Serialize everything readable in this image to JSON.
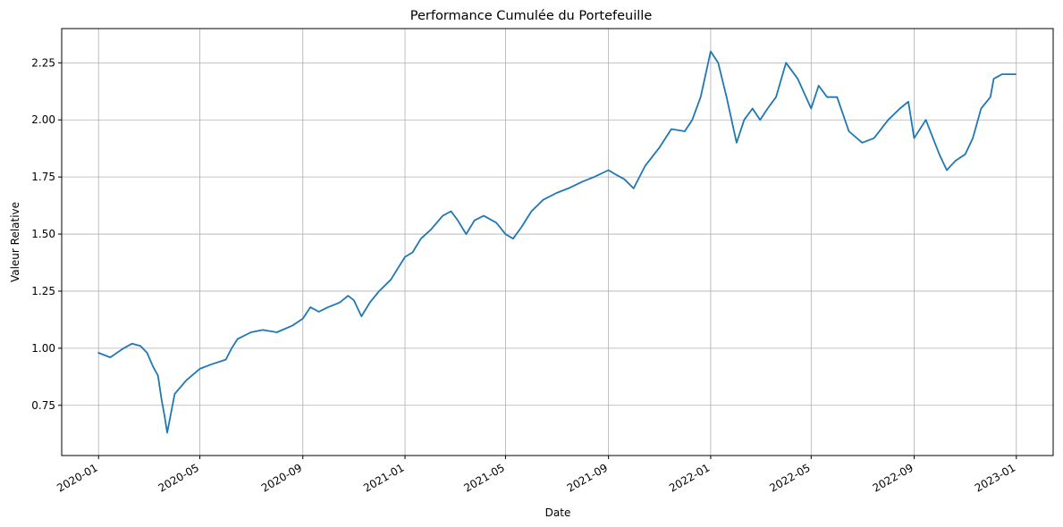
{
  "chart_data": {
    "type": "line",
    "title": "Performance Cumulée du Portefeuille",
    "xlabel": "Date",
    "ylabel": "Valeur Relative",
    "xlim": [
      "2019-11-18",
      "2023-02-14"
    ],
    "ylim": [
      0.53,
      2.4
    ],
    "grid": true,
    "line_color": "#1f77b4",
    "grid_color": "#b0b0b0",
    "x_ticks": [
      "2020-01",
      "2020-05",
      "2020-09",
      "2021-01",
      "2021-05",
      "2021-09",
      "2022-01",
      "2022-05",
      "2022-09",
      "2023-01"
    ],
    "y_ticks": [
      "0.75",
      "1.00",
      "1.25",
      "1.50",
      "1.75",
      "2.00",
      "2.25"
    ],
    "series": [
      {
        "x": [
          "2020-01-01",
          "2020-01-15",
          "2020-01-31",
          "2020-02-10",
          "2020-02-20",
          "2020-02-28",
          "2020-03-06",
          "2020-03-12",
          "2020-03-16",
          "2020-03-20",
          "2020-03-23",
          "2020-04-01",
          "2020-04-15",
          "2020-05-01",
          "2020-05-15",
          "2020-06-01",
          "2020-06-08",
          "2020-06-15",
          "2020-07-01",
          "2020-07-15",
          "2020-08-01",
          "2020-08-20",
          "2020-09-01",
          "2020-09-10",
          "2020-09-20",
          "2020-10-01",
          "2020-10-15",
          "2020-10-25",
          "2020-11-01",
          "2020-11-10",
          "2020-11-20",
          "2020-12-01",
          "2020-12-15",
          "2021-01-01",
          "2021-01-10",
          "2021-01-20",
          "2021-02-01",
          "2021-02-15",
          "2021-02-25",
          "2021-03-05",
          "2021-03-15",
          "2021-03-25",
          "2021-04-05",
          "2021-04-20",
          "2021-05-01",
          "2021-05-10",
          "2021-05-20",
          "2021-06-01",
          "2021-06-15",
          "2021-07-01",
          "2021-07-15",
          "2021-08-01",
          "2021-08-15",
          "2021-09-01",
          "2021-09-10",
          "2021-09-20",
          "2021-10-01",
          "2021-10-15",
          "2021-11-01",
          "2021-11-15",
          "2021-12-01",
          "2021-12-10",
          "2021-12-20",
          "2022-01-01",
          "2022-01-10",
          "2022-01-20",
          "2022-02-01",
          "2022-02-10",
          "2022-02-20",
          "2022-03-01",
          "2022-03-10",
          "2022-03-20",
          "2022-04-01",
          "2022-04-15",
          "2022-05-01",
          "2022-05-10",
          "2022-05-20",
          "2022-06-01",
          "2022-06-15",
          "2022-07-01",
          "2022-07-15",
          "2022-08-01",
          "2022-08-15",
          "2022-08-25",
          "2022-09-01",
          "2022-09-15",
          "2022-10-01",
          "2022-10-10",
          "2022-10-20",
          "2022-11-01",
          "2022-11-10",
          "2022-11-20",
          "2022-12-01",
          "2022-12-05",
          "2022-12-15",
          "2022-12-31"
        ],
        "y": [
          0.98,
          0.96,
          1.0,
          1.02,
          1.01,
          0.98,
          0.92,
          0.88,
          0.78,
          0.7,
          0.63,
          0.8,
          0.86,
          0.91,
          0.93,
          0.95,
          1.0,
          1.04,
          1.07,
          1.08,
          1.07,
          1.1,
          1.13,
          1.18,
          1.16,
          1.18,
          1.2,
          1.23,
          1.21,
          1.14,
          1.2,
          1.25,
          1.3,
          1.4,
          1.42,
          1.48,
          1.52,
          1.58,
          1.6,
          1.56,
          1.5,
          1.56,
          1.58,
          1.55,
          1.5,
          1.48,
          1.53,
          1.6,
          1.65,
          1.68,
          1.7,
          1.73,
          1.75,
          1.78,
          1.76,
          1.74,
          1.7,
          1.8,
          1.88,
          1.96,
          1.95,
          2.0,
          2.1,
          2.3,
          2.25,
          2.1,
          1.9,
          2.0,
          2.05,
          2.0,
          2.05,
          2.1,
          2.25,
          2.18,
          2.05,
          2.15,
          2.1,
          2.1,
          1.95,
          1.9,
          1.92,
          2.0,
          2.05,
          2.08,
          1.92,
          2.0,
          1.85,
          1.78,
          1.82,
          1.85,
          1.92,
          2.05,
          2.1,
          2.18,
          2.2,
          2.2
        ]
      }
    ]
  }
}
